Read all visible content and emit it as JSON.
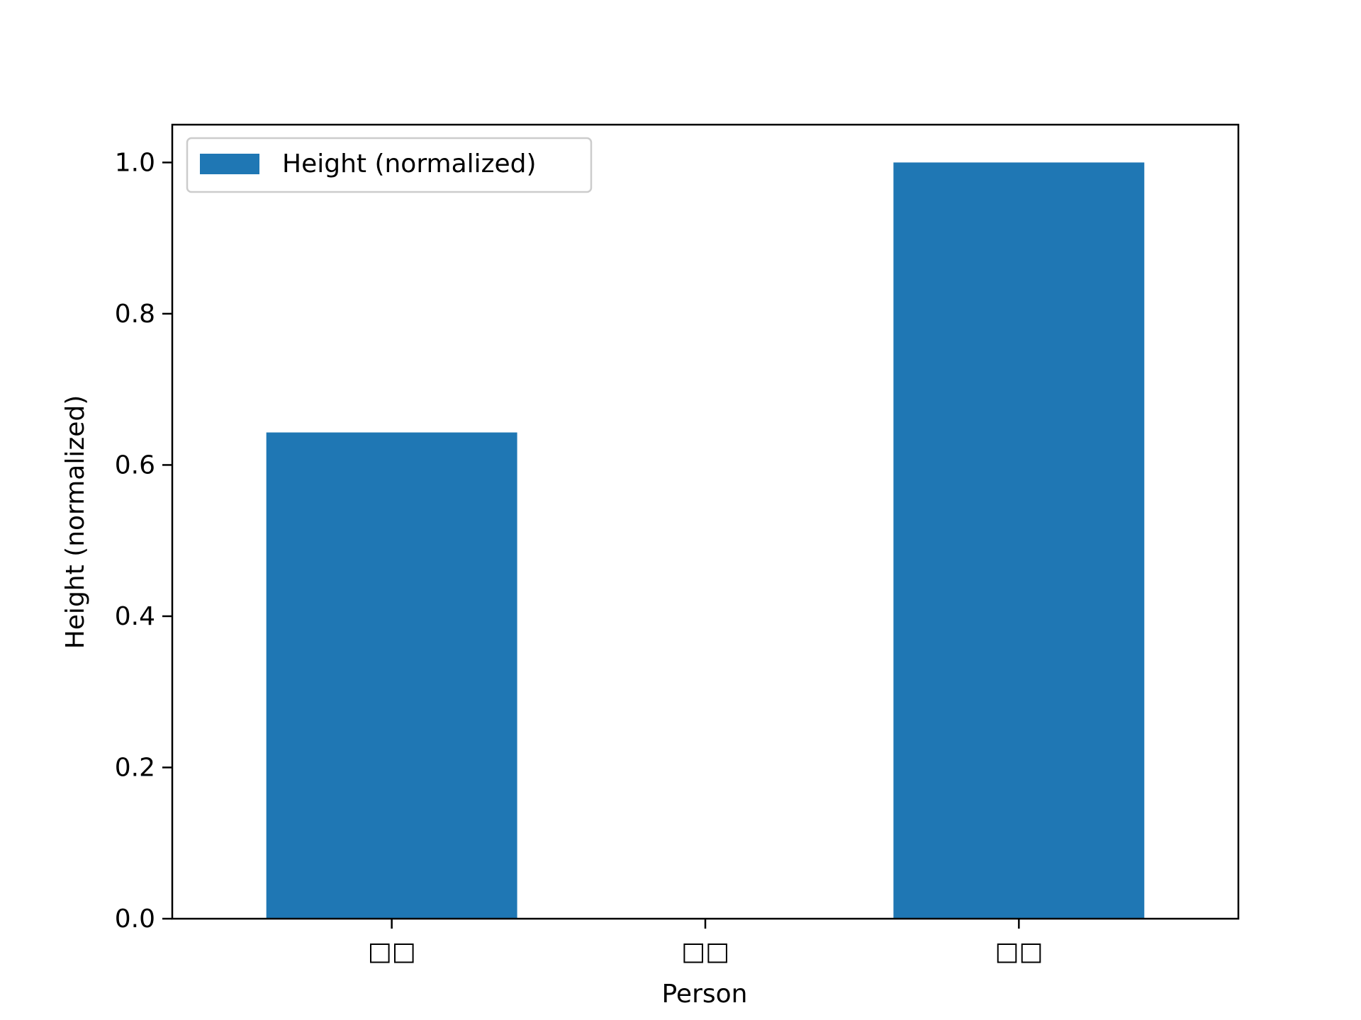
{
  "chart_data": {
    "type": "bar",
    "categories": [
      "□□",
      "□□",
      "□□"
    ],
    "series": [
      {
        "name": "Height (normalized)",
        "values": [
          0.643,
          0.0,
          1.0
        ]
      }
    ],
    "xlabel": "Person",
    "ylabel": "Height (normalized)",
    "ylim": [
      0,
      1.05
    ],
    "yticks": [
      "0.0",
      "0.2",
      "0.4",
      "0.6",
      "0.8",
      "1.0"
    ],
    "grid": false,
    "legend_position": "top-left",
    "colors": {
      "bar": "#1f77b4",
      "axis": "#000000",
      "legend_border": "#cccccc"
    }
  }
}
